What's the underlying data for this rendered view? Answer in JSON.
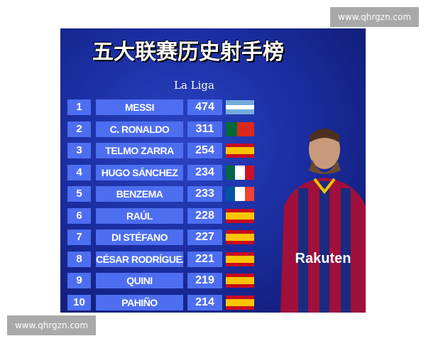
{
  "title": "五大联赛历史射手榜",
  "subtitle": "La Liga",
  "rows": [
    {
      "rank": "1",
      "name": "MESSI",
      "goals": "474",
      "flag": "argentina"
    },
    {
      "rank": "2",
      "name": "C. RONALDO",
      "goals": "311",
      "flag": "portugal"
    },
    {
      "rank": "3",
      "name": "TELMO ZARRA",
      "goals": "254",
      "flag": "spain"
    },
    {
      "rank": "4",
      "name": "HUGO SÁNCHEZ",
      "goals": "234",
      "flag": "mexico"
    },
    {
      "rank": "5",
      "name": "BENZEMA",
      "goals": "233",
      "flag": "france"
    },
    {
      "rank": "6",
      "name": "RAÚL",
      "goals": "228",
      "flag": "spain"
    },
    {
      "rank": "7",
      "name": "DI STÉFANO",
      "goals": "227",
      "flag": "spain"
    },
    {
      "rank": "8",
      "name": "CÉSAR RODRÍGUEZ",
      "goals": "221",
      "flag": "spain"
    },
    {
      "rank": "9",
      "name": "QUINI",
      "goals": "219",
      "flag": "spain"
    },
    {
      "rank": "10",
      "name": "PAHIÑO",
      "goals": "214",
      "flag": "spain"
    }
  ],
  "player": {
    "sponsor": "Rakuten"
  },
  "watermark_top": "www.qhrgzn.com",
  "watermark_bottom": "www.qhrgzn.com",
  "colors": {
    "row_box": "#4d6ef0",
    "background": "#1a2c9e"
  }
}
